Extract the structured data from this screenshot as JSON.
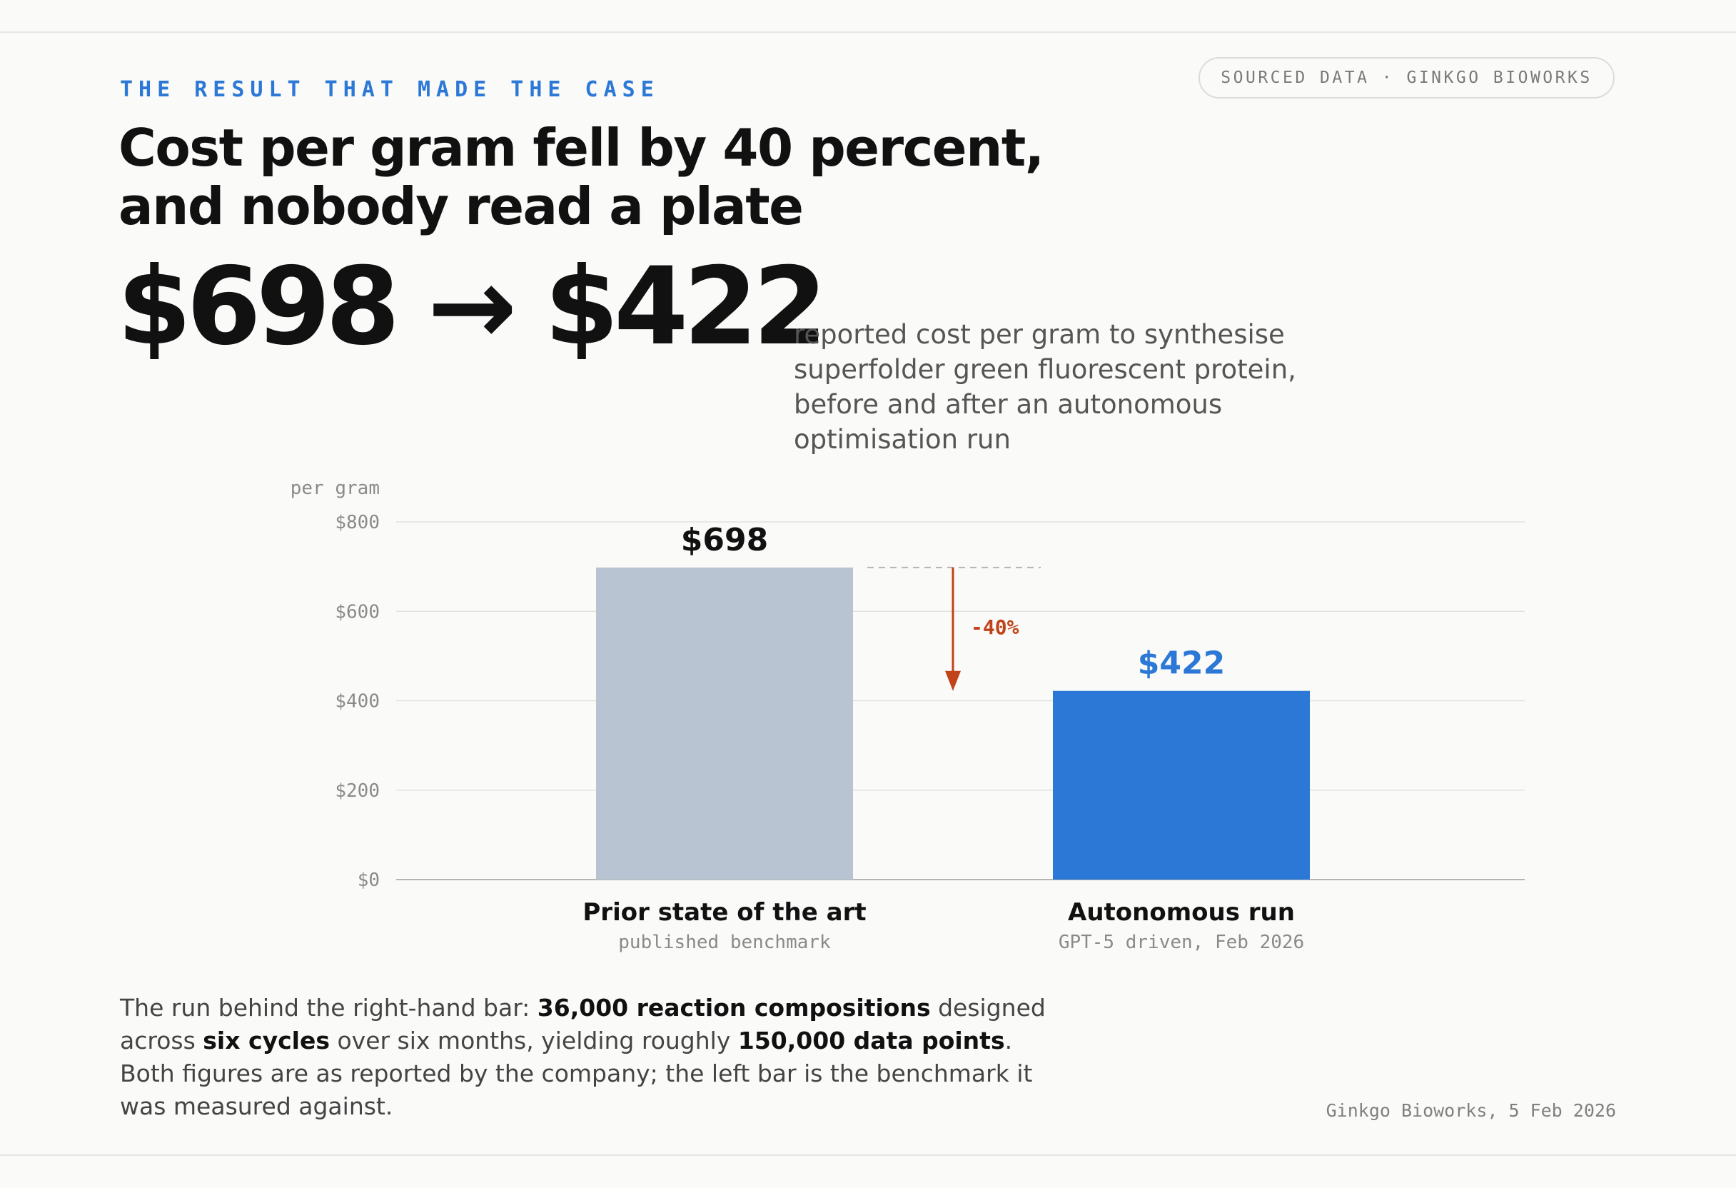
{
  "eyebrow": "THE RESULT THAT MADE THE CASE",
  "source_badge": "SOURCED DATA · GINKGO BIOWORKS",
  "headline": {
    "line1": "Cost per gram fell by 40 percent,",
    "line2": "and nobody read a plate"
  },
  "big_number": {
    "before": "$698",
    "arrow": "→",
    "after": "$422",
    "caption": "reported cost per gram to synthesise superfolder green fluorescent protein, before and after an autonomous optimisation run"
  },
  "chart_data": {
    "type": "bar",
    "ylabel": "per gram",
    "ylim": [
      0,
      800
    ],
    "yticks": [
      {
        "value": 800,
        "label": "$800"
      },
      {
        "value": 600,
        "label": "$600"
      },
      {
        "value": 400,
        "label": "$400"
      },
      {
        "value": 200,
        "label": "$200"
      },
      {
        "value": 0,
        "label": "$0"
      }
    ],
    "categories": [
      "Prior state of the art",
      "Autonomous run"
    ],
    "subcategories": [
      "published benchmark",
      "GPT-5 driven, Feb 2026"
    ],
    "values": [
      698,
      422
    ],
    "value_labels": [
      "$698",
      "$422"
    ],
    "colors": [
      "#b8c4d2",
      "#2b78d6"
    ],
    "label_colors": [
      "#111111",
      "#2b78d6"
    ],
    "annotation": {
      "text": "-40%",
      "color": "#c0431a"
    },
    "grid": true
  },
  "body": {
    "p1": "The run behind the right-hand bar: ",
    "b1": "36,000 reaction compositions",
    "p2": " designed across ",
    "b2": "six cycles",
    "p3": " over six months, yielding roughly ",
    "b3": "150,000 data points",
    "p4": ". Both figures are as reported by the company; the left bar is the benchmark it was measured against."
  },
  "footer_credit": "Ginkgo Bioworks, 5 Feb 2026"
}
